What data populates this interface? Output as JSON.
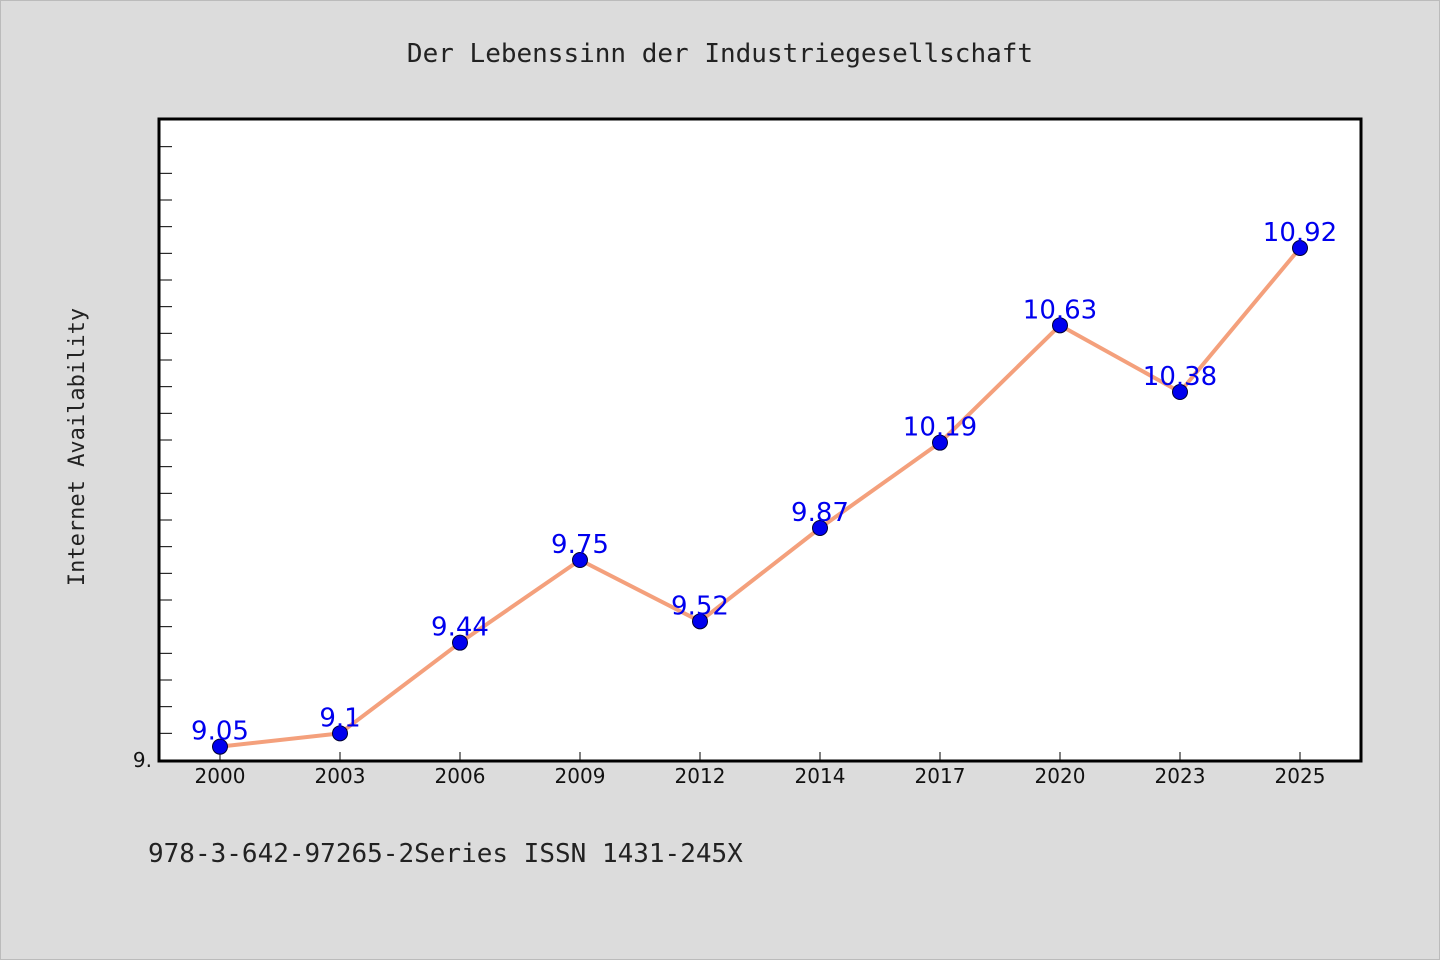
{
  "chart_data": {
    "type": "line",
    "title": "Der Lebenssinn der Industriegesellschaft",
    "xlabel": "",
    "ylabel": "Internet Availability",
    "categories": [
      "2000",
      "2003",
      "2006",
      "2009",
      "2012",
      "2014",
      "2017",
      "2020",
      "2023",
      "2025"
    ],
    "series": [
      {
        "values": [
          9.05,
          9.1,
          9.44,
          9.75,
          9.52,
          9.87,
          10.19,
          10.63,
          10.38,
          10.92
        ],
        "data_labels": [
          "9.05",
          "9.1",
          "9.44",
          "9.75",
          "9.52",
          "9.87",
          "10.19",
          "10.63",
          "10.38",
          "10.92"
        ],
        "line_color": "#f4a07c",
        "marker_color": "#0000ee"
      }
    ],
    "ylim": [
      9.0,
      11.4
    ],
    "ytick_label": "9.",
    "grid": false,
    "legend": "none",
    "footer": "978-3-642-97265-2Series ISSN 1431-245X"
  }
}
